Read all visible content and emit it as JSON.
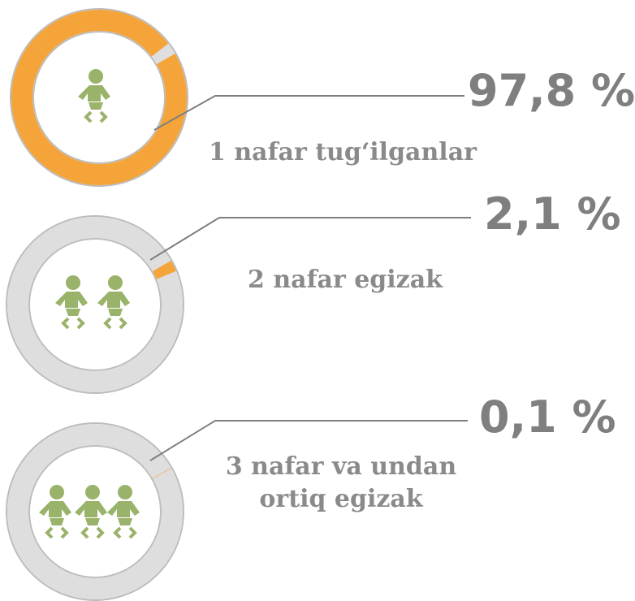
{
  "chart_data": [
    {
      "type": "donut",
      "categories": [
        "1 nafar tug‘ilganlar"
      ],
      "values": [
        97.8
      ],
      "value_labels": [
        "97,8 %"
      ],
      "color": "#f5a43a"
    },
    {
      "type": "donut",
      "categories": [
        "2 nafar egizak"
      ],
      "values": [
        2.1
      ],
      "value_labels": [
        "2,1 %"
      ],
      "color": "#f5a43a"
    },
    {
      "type": "donut",
      "categories": [
        "3 nafar va undan ortiq egizak"
      ],
      "values": [
        0.1
      ],
      "value_labels": [
        "0,1 %"
      ],
      "color": "#f5a43a"
    }
  ]
}
